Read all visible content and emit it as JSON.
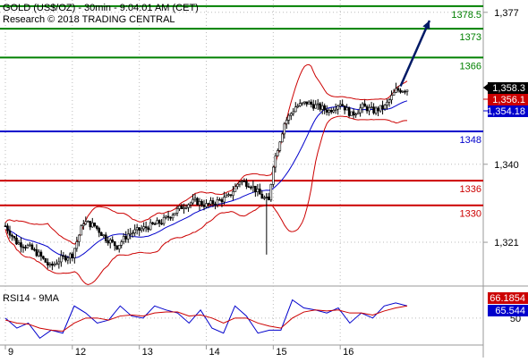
{
  "header": {
    "title": "GOLD (US$/OZ) - 30min - 9:04:01 AM (CET)",
    "credit": "Research © 2018 TRADING CENTRAL"
  },
  "colors": {
    "support": "#0000cc",
    "resistance_red": "#cc0000",
    "target_green": "#008000",
    "bollinger": "#cc0000",
    "moving_average": "#0000cc",
    "candles": "#000000",
    "rsi_line": "#0000cc",
    "rsi_ma": "#cc0000",
    "arrow": "#001a66",
    "badge_black": "#000000",
    "badge_red": "#cc0000",
    "badge_blue": "#0000cc"
  },
  "chart_data": [
    {
      "type": "candlestick",
      "title": "GOLD (US$/OZ) - 30min - 9:04:01 AM (CET)",
      "x_ticks": [
        "9",
        "12",
        "13",
        "14",
        "15",
        "16"
      ],
      "y_ticks": [
        1321,
        1340,
        1377
      ],
      "ylim": [
        1311,
        1380
      ],
      "x_range_bars": [
        0,
        180
      ],
      "levels": [
        {
          "value": 1378.5,
          "label": "1378.5",
          "role": "target",
          "color": "#008000"
        },
        {
          "value": 1373,
          "label": "1373",
          "role": "target",
          "color": "#008000"
        },
        {
          "value": 1366,
          "label": "1366",
          "role": "target",
          "color": "#008000"
        },
        {
          "value": 1348,
          "label": "1348",
          "role": "pivot",
          "color": "#0000cc"
        },
        {
          "value": 1336,
          "label": "1336",
          "role": "support",
          "color": "#cc0000"
        },
        {
          "value": 1330,
          "label": "1330",
          "role": "support",
          "color": "#cc0000"
        }
      ],
      "last_values": [
        {
          "label": "1,358.3",
          "value": 1358.3,
          "series": "price"
        },
        {
          "label": "1,356.1",
          "value": 1356.1,
          "series": "bollinger"
        },
        {
          "label": "1,354.18",
          "value": 1354.18,
          "series": "moving_average"
        }
      ],
      "price_path": [
        [
          0,
          1325
        ],
        [
          5,
          1321
        ],
        [
          10,
          1320
        ],
        [
          15,
          1318
        ],
        [
          20,
          1315
        ],
        [
          25,
          1317
        ],
        [
          30,
          1318
        ],
        [
          35,
          1326
        ],
        [
          40,
          1325
        ],
        [
          45,
          1322
        ],
        [
          50,
          1320
        ],
        [
          55,
          1323
        ],
        [
          60,
          1324
        ],
        [
          65,
          1325
        ],
        [
          70,
          1326
        ],
        [
          75,
          1328
        ],
        [
          80,
          1330
        ],
        [
          85,
          1331
        ],
        [
          90,
          1330
        ],
        [
          95,
          1331
        ],
        [
          100,
          1332
        ],
        [
          105,
          1336
        ],
        [
          110,
          1335
        ],
        [
          115,
          1332
        ],
        [
          118,
          1331
        ],
        [
          120,
          1340
        ],
        [
          125,
          1350
        ],
        [
          130,
          1354
        ],
        [
          135,
          1355
        ],
        [
          140,
          1354
        ],
        [
          145,
          1353
        ],
        [
          150,
          1355
        ],
        [
          155,
          1352
        ],
        [
          160,
          1354
        ],
        [
          165,
          1353
        ],
        [
          170,
          1354
        ],
        [
          175,
          1358
        ],
        [
          180,
          1358.3
        ]
      ],
      "projection_arrow": {
        "from": [
          177,
          1359
        ],
        "to": [
          190,
          1375
        ]
      }
    },
    {
      "type": "line",
      "title": "RSI14 - 9MA",
      "series": [
        {
          "name": "RSI14",
          "last": 65.544,
          "values": [
            50,
            40,
            45,
            30,
            38,
            35,
            62,
            55,
            45,
            48,
            62,
            52,
            50,
            62,
            58,
            55,
            45,
            58,
            40,
            35,
            62,
            52,
            35,
            38,
            38,
            68,
            60,
            58,
            55,
            60,
            45,
            55,
            50,
            62,
            65,
            62
          ]
        },
        {
          "name": "9MA",
          "last": 66.1854,
          "values": [
            48,
            45,
            44,
            40,
            38,
            37,
            45,
            50,
            50,
            48,
            52,
            53,
            52,
            55,
            56,
            56,
            52,
            53,
            50,
            45,
            50,
            50,
            45,
            42,
            40,
            50,
            56,
            58,
            57,
            58,
            55,
            55,
            53,
            57,
            60,
            62
          ]
        }
      ],
      "y_ticks": [
        50
      ],
      "ylim": [
        25,
        80
      ],
      "last_labels": [
        "66.1854",
        "65.544"
      ]
    }
  ]
}
